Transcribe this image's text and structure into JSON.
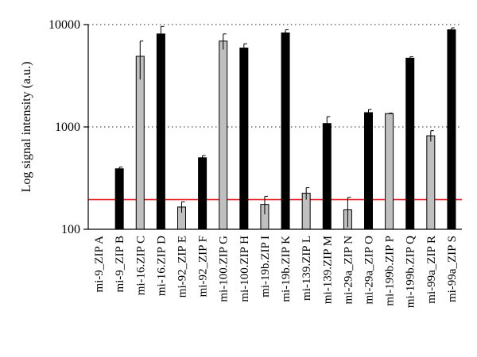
{
  "chart_data": {
    "type": "bar",
    "ylabel": "Log signal intensity (a.u.)",
    "y_scale": "log",
    "ylim": [
      100,
      10000
    ],
    "yticks": [
      100,
      1000,
      10000
    ],
    "ytick_labels": [
      "100",
      "1000",
      "10000"
    ],
    "grid": "horizontal dotted at 1000 and 10000",
    "threshold_line": {
      "value": 195,
      "color": "#e8262b"
    },
    "colors": {
      "black_bar": "#000000",
      "gray_bar": "#bfbfbf",
      "outline": "#000000"
    },
    "categories": [
      "mi-9_ZIP A",
      "mi-9_ZIP B",
      "mi-16.ZIP C",
      "mi-16.ZIP D",
      "mi-92_ZIP E",
      "mi-92_ZIP F",
      "mi-100.ZIP G",
      "mi-100.ZIP H",
      "mi-19b.ZIP I",
      "mi-19b.ZIP K",
      "mi-139.ZIP L",
      "mi-139.ZIP M",
      "mi-29a_ZIP N",
      "mi-29a_ZIP O",
      "mi-199b.ZIP P",
      "mi-199b.ZIP Q",
      "mi-99a_ZIP R",
      "mi-99a_ZIP S"
    ],
    "values": [
      null,
      390,
      4900,
      8100,
      165,
      500,
      6900,
      5900,
      175,
      8300,
      225,
      1080,
      155,
      1380,
      1350,
      4700,
      820,
      8900
    ],
    "errors": [
      null,
      15,
      2000,
      1500,
      20,
      25,
      1200,
      600,
      35,
      600,
      30,
      180,
      50,
      100,
      15,
      150,
      100,
      400
    ],
    "bar_colors": [
      "none",
      "black",
      "gray",
      "black",
      "gray",
      "black",
      "gray",
      "black",
      "gray",
      "black",
      "gray",
      "black",
      "gray",
      "black",
      "gray",
      "black",
      "gray",
      "black"
    ]
  }
}
